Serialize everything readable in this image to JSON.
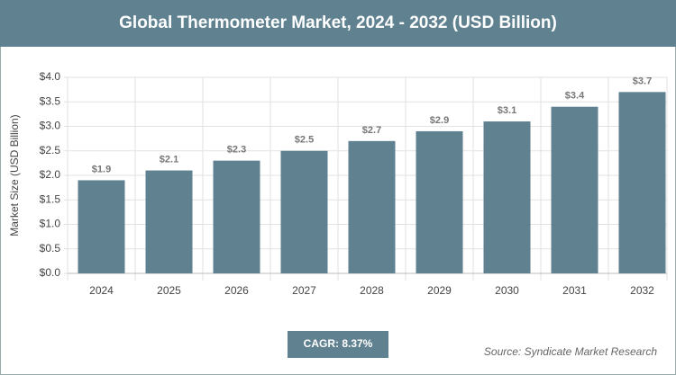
{
  "chart_data": {
    "type": "bar",
    "title": "Global Thermometer Market, 2024 - 2032 (USD Billion)",
    "y_label": "Market Size (USD Billion)",
    "categories": [
      "2024",
      "2025",
      "2026",
      "2027",
      "2028",
      "2029",
      "2030",
      "2031",
      "2032"
    ],
    "values": [
      1.9,
      2.1,
      2.3,
      2.5,
      2.7,
      2.9,
      3.1,
      3.4,
      3.7
    ],
    "value_labels": [
      "$1.9",
      "$2.1",
      "$2.3",
      "$2.5",
      "$2.7",
      "$2.9",
      "$3.1",
      "$3.4",
      "$3.7"
    ],
    "color": "#5f8190",
    "ylim": [
      0,
      4
    ],
    "yticks": [
      {
        "value": 0,
        "label": "$0.0"
      },
      {
        "value": 0.5,
        "label": "$0.5"
      },
      {
        "value": 1,
        "label": "$1.0"
      },
      {
        "value": 1.5,
        "label": "$1.5"
      },
      {
        "value": 2,
        "label": "$2.0"
      },
      {
        "value": 2.5,
        "label": "$2.5"
      },
      {
        "value": 3,
        "label": "$3.0"
      },
      {
        "value": 3.5,
        "label": "$3.5"
      },
      {
        "value": 4,
        "label": "$4.0"
      }
    ],
    "grid": true,
    "cagr": "CAGR: 8.37%",
    "source": "Source: Syndicate Market Research"
  }
}
